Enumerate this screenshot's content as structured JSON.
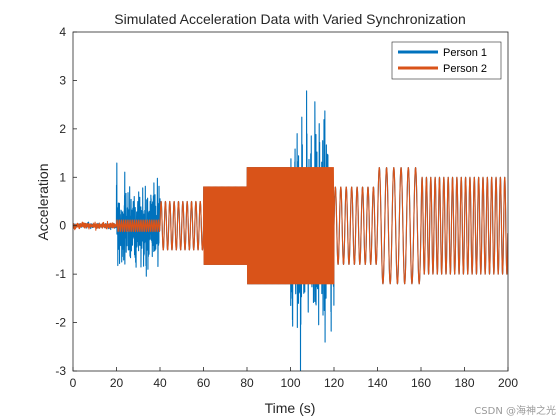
{
  "chart_data": {
    "type": "line",
    "title": "Simulated Acceleration Data with Varied Synchronization",
    "xlabel": "Time (s)",
    "ylabel": "Acceleration",
    "xlim": [
      0,
      200
    ],
    "ylim": [
      -3,
      4
    ],
    "xticks": [
      0,
      20,
      40,
      60,
      80,
      100,
      120,
      140,
      160,
      180,
      200
    ],
    "yticks": [
      -3,
      -2,
      -1,
      0,
      1,
      2,
      3,
      4
    ],
    "grid": false,
    "legend_position": "top-right",
    "series": [
      {
        "name": "Person 1",
        "color": "#0072BD",
        "segments": [
          {
            "x_start": 0,
            "x_end": 20,
            "pattern": "noise",
            "amplitude": 0.1,
            "frequency": 0
          },
          {
            "x_start": 20,
            "x_end": 40,
            "pattern": "noise",
            "amplitude": 1.5,
            "frequency": 0
          },
          {
            "x_start": 40,
            "x_end": 60,
            "pattern": "sine",
            "amplitude": 0.5,
            "frequency": 0.5
          },
          {
            "x_start": 60,
            "x_end": 80,
            "pattern": "sine",
            "amplitude": 0.8,
            "frequency": 2.5
          },
          {
            "x_start": 80,
            "x_end": 100,
            "pattern": "sine",
            "amplitude": 1.2,
            "frequency": 2.5
          },
          {
            "x_start": 100,
            "x_end": 120,
            "pattern": "noise",
            "amplitude": 3.8,
            "frequency": 0
          },
          {
            "x_start": 120,
            "x_end": 140,
            "pattern": "sine",
            "amplitude": 0.8,
            "frequency": 0.4
          },
          {
            "x_start": 140,
            "x_end": 160,
            "pattern": "sine",
            "amplitude": 1.2,
            "frequency": 0.3
          },
          {
            "x_start": 160,
            "x_end": 180,
            "pattern": "sine",
            "amplitude": 1.0,
            "frequency": 0.5
          },
          {
            "x_start": 180,
            "x_end": 200,
            "pattern": "sine",
            "amplitude": 1.0,
            "frequency": 0.5
          }
        ]
      },
      {
        "name": "Person 2",
        "color": "#D95319",
        "segments": [
          {
            "x_start": 0,
            "x_end": 20,
            "pattern": "noise",
            "amplitude": 0.12,
            "frequency": 0
          },
          {
            "x_start": 20,
            "x_end": 40,
            "pattern": "sine",
            "amplitude": 0.12,
            "frequency": 1.0
          },
          {
            "x_start": 40,
            "x_end": 60,
            "pattern": "sine",
            "amplitude": 0.5,
            "frequency": 0.5
          },
          {
            "x_start": 60,
            "x_end": 80,
            "pattern": "sine",
            "amplitude": 0.8,
            "frequency": 2.5
          },
          {
            "x_start": 80,
            "x_end": 100,
            "pattern": "sine",
            "amplitude": 1.2,
            "frequency": 2.5
          },
          {
            "x_start": 100,
            "x_end": 120,
            "pattern": "sine",
            "amplitude": 1.2,
            "frequency": 2.5
          },
          {
            "x_start": 120,
            "x_end": 140,
            "pattern": "sine",
            "amplitude": 0.8,
            "frequency": 0.4
          },
          {
            "x_start": 140,
            "x_end": 160,
            "pattern": "sine",
            "amplitude": 1.2,
            "frequency": 0.3
          },
          {
            "x_start": 160,
            "x_end": 180,
            "pattern": "sine",
            "amplitude": 1.0,
            "frequency": 0.5
          },
          {
            "x_start": 180,
            "x_end": 200,
            "pattern": "sine",
            "amplitude": 1.0,
            "frequency": 0.5
          }
        ]
      }
    ]
  },
  "watermark": "CSDN @海神之光"
}
